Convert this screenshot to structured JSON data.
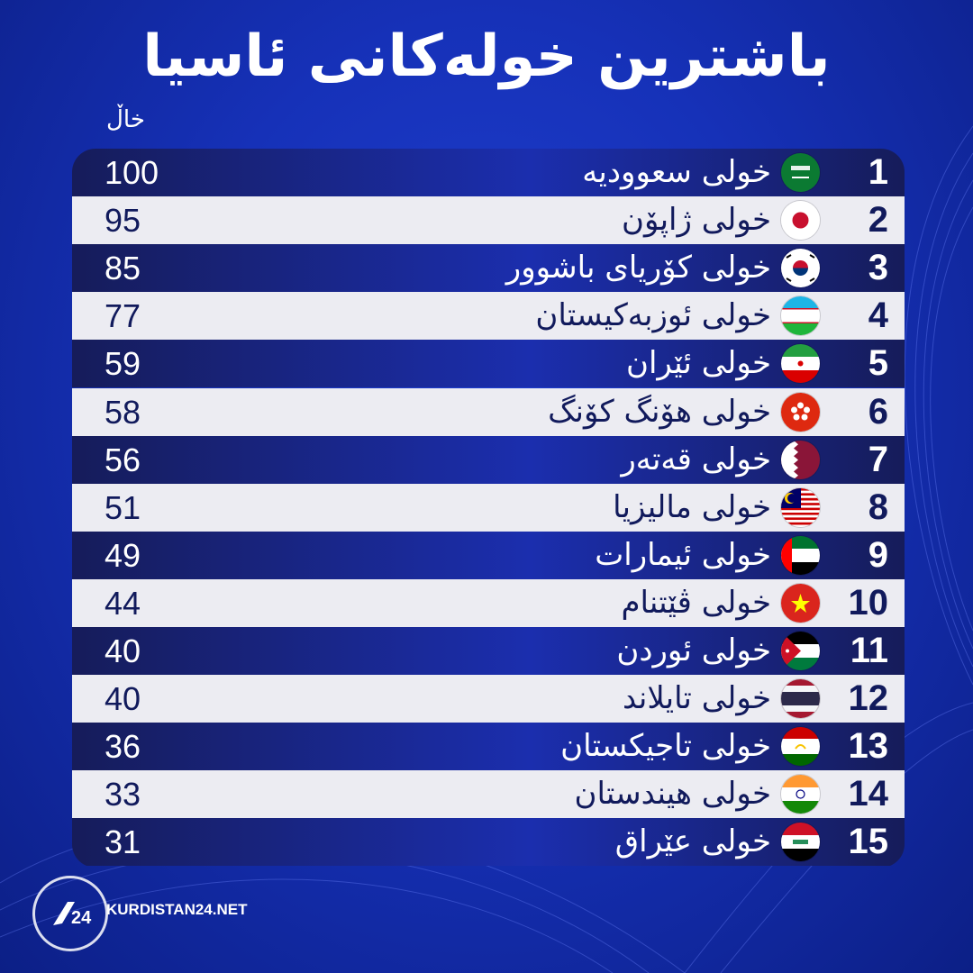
{
  "title": "باشترین خولەکانی ئاسیا",
  "points_label": "خاڵ",
  "brand": "KURDISTAN24.NET",
  "chart_data": {
    "type": "table",
    "columns": [
      "rank",
      "flag",
      "league",
      "points"
    ],
    "rows": [
      {
        "rank": "1",
        "flag": "saudi-arabia-flag-icon",
        "league": "خولی سعوودیه",
        "points": "100"
      },
      {
        "rank": "2",
        "flag": "japan-flag-icon",
        "league": "خولی ژاپۆن",
        "points": "95"
      },
      {
        "rank": "3",
        "flag": "south-korea-flag-icon",
        "league": "خولی کۆریای باشوور",
        "points": "85"
      },
      {
        "rank": "4",
        "flag": "uzbekistan-flag-icon",
        "league": "خولی ئوزبەکیستان",
        "points": "77"
      },
      {
        "rank": "5",
        "flag": "iran-flag-icon",
        "league": "خولی ئێران",
        "points": "59"
      },
      {
        "rank": "6",
        "flag": "hong-kong-flag-icon",
        "league": "خولی هۆنگ کۆنگ",
        "points": "58"
      },
      {
        "rank": "7",
        "flag": "qatar-flag-icon",
        "league": "خولی قەتەر",
        "points": "56"
      },
      {
        "rank": "8",
        "flag": "malaysia-flag-icon",
        "league": "خولی مالیزیا",
        "points": "51"
      },
      {
        "rank": "9",
        "flag": "uae-flag-icon",
        "league": "خولی ئیمارات",
        "points": "49"
      },
      {
        "rank": "10",
        "flag": "vietnam-flag-icon",
        "league": "خولی ڤێتنام",
        "points": "44"
      },
      {
        "rank": "11",
        "flag": "jordan-flag-icon",
        "league": "خولی ئوردن",
        "points": "40"
      },
      {
        "rank": "12",
        "flag": "thailand-flag-icon",
        "league": "خولی تایلاند",
        "points": "40"
      },
      {
        "rank": "13",
        "flag": "tajikistan-flag-icon",
        "league": "خولی تاجیکستان",
        "points": "36"
      },
      {
        "rank": "14",
        "flag": "india-flag-icon",
        "league": "خولی هیندستان",
        "points": "33"
      },
      {
        "rank": "15",
        "flag": "iraq-flag-icon",
        "league": "خولی عێراق",
        "points": "31"
      }
    ]
  }
}
